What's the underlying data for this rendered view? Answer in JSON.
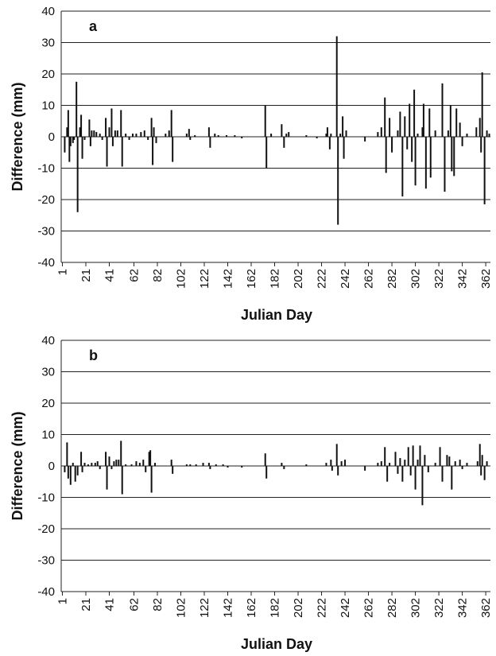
{
  "chart_data": [
    {
      "type": "bar",
      "annotation": "a",
      "xlabel": "Julian Day",
      "ylabel": "Difference (mm)",
      "color": "#111111",
      "grid": true,
      "ylim": [
        -40,
        40
      ],
      "yticks": [
        -40,
        -30,
        -20,
        -10,
        0,
        10,
        20,
        30,
        40
      ],
      "xlim": [
        0,
        366
      ],
      "xticks": [
        1,
        21,
        41,
        62,
        82,
        102,
        122,
        142,
        162,
        182,
        202,
        222,
        242,
        262,
        282,
        302,
        322,
        342,
        362
      ],
      "x": [
        3,
        5,
        6,
        7,
        8,
        10,
        11,
        13,
        14,
        16,
        17,
        18,
        20,
        24,
        25,
        26,
        28,
        30,
        33,
        35,
        38,
        39,
        41,
        43,
        44,
        46,
        48,
        51,
        52,
        55,
        58,
        61,
        64,
        68,
        71,
        74,
        77,
        78,
        79,
        81,
        89,
        92,
        94,
        95,
        107,
        109,
        110,
        114,
        126,
        127,
        131,
        134,
        141,
        148,
        154,
        174,
        175,
        179,
        188,
        190,
        192,
        194,
        209,
        218,
        226,
        227,
        229,
        230,
        235,
        236,
        238,
        240,
        241,
        243,
        259,
        270,
        273,
        276,
        277,
        280,
        282,
        287,
        289,
        291,
        293,
        295,
        297,
        299,
        301,
        302,
        304,
        308,
        309,
        311,
        314,
        315,
        319,
        325,
        327,
        330,
        332,
        333,
        335,
        337,
        340,
        342,
        346,
        354,
        357,
        358,
        359,
        361,
        363,
        365
      ],
      "values": [
        -5,
        3,
        8.5,
        -8,
        -3,
        -2,
        -1,
        17.5,
        -24,
        3,
        7,
        -7,
        -1,
        5.5,
        -3,
        2,
        2,
        1.5,
        1,
        -1,
        6,
        -9.5,
        3,
        9,
        -3,
        2,
        2,
        8.5,
        -9.5,
        1,
        -1,
        1,
        1,
        1.5,
        2,
        -1,
        6,
        -9,
        3,
        -2,
        1,
        2,
        8.5,
        -8,
        1,
        2.5,
        -1,
        0.5,
        3,
        -3.5,
        1,
        0.5,
        0.5,
        0.5,
        -0.5,
        10,
        -10,
        1,
        4,
        -3.5,
        1,
        1.5,
        0.5,
        -0.5,
        1,
        3,
        -4,
        1,
        32,
        -28,
        1,
        6.5,
        -7,
        2,
        -1.5,
        1.5,
        3,
        12.5,
        -11.5,
        6,
        -5,
        2,
        8,
        -19,
        6.5,
        -4,
        10.5,
        -8,
        15,
        -15.5,
        1,
        3,
        10.5,
        -16.5,
        9,
        -13,
        2,
        17,
        -17.5,
        2,
        10,
        -11,
        -12.5,
        9,
        4.5,
        -3,
        1,
        3,
        6,
        -5,
        20.5,
        -21.5,
        2,
        1
      ]
    },
    {
      "type": "bar",
      "annotation": "b",
      "xlabel": "Julian Day",
      "ylabel": "Difference (mm)",
      "color": "#111111",
      "grid": true,
      "ylim": [
        -40,
        40
      ],
      "yticks": [
        -40,
        -30,
        -20,
        -10,
        0,
        10,
        20,
        30,
        40
      ],
      "xlim": [
        0,
        366
      ],
      "xticks": [
        1,
        21,
        41,
        62,
        82,
        102,
        122,
        142,
        162,
        182,
        202,
        222,
        242,
        262,
        282,
        302,
        322,
        342,
        362
      ],
      "x": [
        3,
        5,
        6,
        8,
        10,
        12,
        14,
        17,
        18,
        20,
        23,
        26,
        29,
        31,
        33,
        38,
        39,
        41,
        43,
        45,
        47,
        49,
        51,
        52,
        55,
        60,
        64,
        67,
        70,
        72,
        75,
        76,
        77,
        80,
        94,
        95,
        107,
        110,
        115,
        121,
        126,
        127,
        132,
        138,
        142,
        154,
        174,
        175,
        188,
        190,
        209,
        226,
        230,
        231,
        235,
        236,
        239,
        242,
        259,
        270,
        273,
        276,
        278,
        280,
        285,
        287,
        289,
        291,
        293,
        296,
        298,
        300,
        302,
        304,
        306,
        308,
        310,
        313,
        319,
        323,
        325,
        329,
        331,
        333,
        336,
        340,
        342,
        346,
        355,
        357,
        358,
        359,
        361,
        363
      ],
      "values": [
        -2,
        7.5,
        -4,
        -6,
        1,
        -5,
        -3,
        4.5,
        -2,
        1,
        0.5,
        1,
        1,
        1.5,
        -1,
        4.5,
        -7.5,
        3,
        -1,
        1.5,
        2,
        2,
        8,
        -9,
        0.5,
        0.5,
        1.5,
        1,
        2,
        -2,
        4.5,
        5,
        -8.5,
        1,
        2,
        -2.5,
        0.5,
        0.5,
        0.5,
        1,
        1,
        -1,
        0.5,
        0.5,
        -0.5,
        -0.5,
        4,
        -4,
        1,
        -1,
        0.5,
        1,
        2,
        -1.5,
        7,
        -3,
        1.5,
        2,
        -1.5,
        1,
        1.5,
        6,
        -5,
        1,
        4.5,
        -2.5,
        2.5,
        -5,
        2,
        6,
        -3,
        6.5,
        -7.5,
        2,
        6.5,
        -12.5,
        3.5,
        -2,
        1,
        6,
        -5,
        3.5,
        3,
        -7.5,
        1.5,
        2,
        -1,
        1,
        1.5,
        7,
        -3,
        3.5,
        -4.5,
        1.5
      ]
    }
  ]
}
